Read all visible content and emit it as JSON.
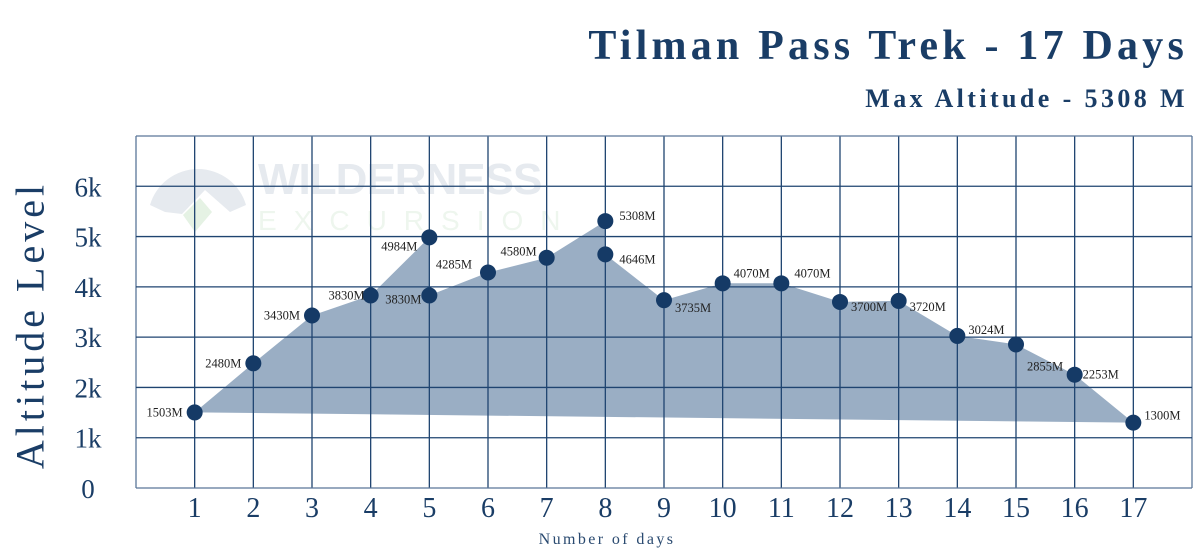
{
  "title": "Tilman Pass Trek - 17 Days",
  "subtitle": "Max Altitude - 5308 M",
  "watermark": {
    "line1": "WILDERNESS",
    "line2": "EXCURSION",
    "icon": "mountain-logo-icon"
  },
  "colors": {
    "primary": "#1a3d66",
    "grid": "#1f4470",
    "fill": "#9aaec4",
    "dot": "#153a66",
    "label": "#222222"
  },
  "chart_data": {
    "type": "area",
    "title": "Tilman Pass Trek - 17 Days",
    "subtitle": "Max Altitude - 5308 M",
    "xlabel": "Number of days",
    "ylabel": "Altitude Level",
    "x_ticks": [
      "1",
      "2",
      "3",
      "4",
      "5",
      "6",
      "7",
      "8",
      "9",
      "10",
      "11",
      "12",
      "13",
      "14",
      "15",
      "16",
      "17"
    ],
    "y_ticks": [
      "0",
      "1k",
      "2k",
      "3k",
      "4k",
      "5k",
      "6k"
    ],
    "ylim": [
      0,
      7000
    ],
    "xlim": [
      0,
      18
    ],
    "grid": true,
    "legend": null,
    "points": [
      {
        "day": 1,
        "value": 1503,
        "label": "1503M"
      },
      {
        "day": 2,
        "value": 2480,
        "label": "2480M"
      },
      {
        "day": 3,
        "value": 3430,
        "label": "3430M"
      },
      {
        "day": 4,
        "value": 3830,
        "label": "3830M"
      },
      {
        "day": 5,
        "value": 4984,
        "label": "4984M"
      },
      {
        "day": 5,
        "value": 3830,
        "label": "3830M"
      },
      {
        "day": 6,
        "value": 4285,
        "label": "4285M"
      },
      {
        "day": 7,
        "value": 4580,
        "label": "4580M"
      },
      {
        "day": 8,
        "value": 5308,
        "label": "5308M"
      },
      {
        "day": 8,
        "value": 4646,
        "label": "4646M"
      },
      {
        "day": 9,
        "value": 3735,
        "label": "3735M"
      },
      {
        "day": 10,
        "value": 4070,
        "label": "4070M"
      },
      {
        "day": 11,
        "value": 4070,
        "label": "4070M"
      },
      {
        "day": 12,
        "value": 3700,
        "label": "3700M"
      },
      {
        "day": 13,
        "value": 3720,
        "label": "3720M"
      },
      {
        "day": 14,
        "value": 3024,
        "label": "3024M"
      },
      {
        "day": 15,
        "value": 2855,
        "label": "2855M"
      },
      {
        "day": 16,
        "value": 2253,
        "label": "2253M"
      },
      {
        "day": 17,
        "value": 1300,
        "label": "1300M"
      }
    ]
  }
}
